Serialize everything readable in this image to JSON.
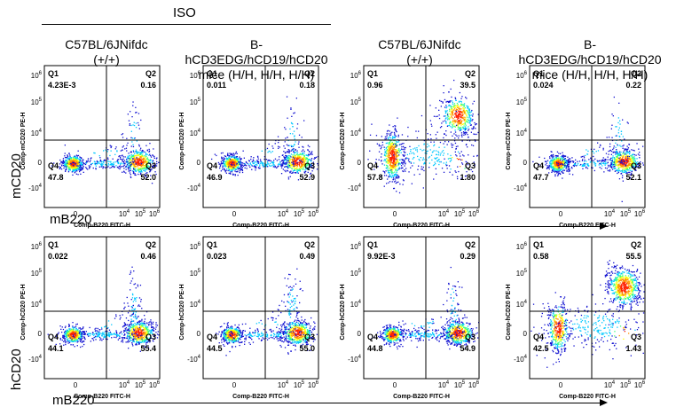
{
  "header": {
    "iso_label": "ISO",
    "columns": [
      {
        "line1": "C57BL/6JNifdc",
        "line2": "(+/+)"
      },
      {
        "line1": "B-hCD3EDG/hCD19/hCD20",
        "line2": "mice (H/H, H/H, H/H)"
      },
      {
        "line1": "C57BL/6JNifdc",
        "line2": "(+/+)"
      },
      {
        "line1": "B-hCD3EDG/hCD19/hCD20",
        "line2": "mice (H/H, H/H, H/H)"
      }
    ]
  },
  "rows": [
    {
      "y_marker": "mCD20",
      "x_marker": "mB220",
      "y_axis_title": "Comp-mCD20 PE-H",
      "x_axis_title": "Comp-B220 FITC-H"
    },
    {
      "y_marker": "hCD20",
      "x_marker": "mB220",
      "y_axis_title": "Comp-hCD20 PE-H",
      "x_axis_title": "Comp-B220 FITC-H"
    }
  ],
  "axis_ticks": {
    "x": [
      {
        "base": "0",
        "exp": ""
      },
      {
        "base": "10",
        "exp": "4"
      },
      {
        "base": "10",
        "exp": "5"
      },
      {
        "base": "10",
        "exp": "6"
      }
    ],
    "y": [
      {
        "base": "10",
        "exp": "6"
      },
      {
        "base": "10",
        "exp": "5"
      },
      {
        "base": "10",
        "exp": "4"
      },
      {
        "base": "0",
        "exp": ""
      },
      {
        "base": "-10",
        "exp": "4"
      }
    ]
  },
  "chart_data": [
    {
      "type": "scatter",
      "row": 0,
      "col": 0,
      "xlabel": "Comp-B220 FITC-H",
      "ylabel": "Comp-mCD20 PE-H",
      "x_scale": "biexponential",
      "y_scale": "biexponential",
      "quadrants": {
        "Q1": "4.23E-3",
        "Q2": "0.16",
        "Q3": "52.0",
        "Q4": "47.8"
      }
    },
    {
      "type": "scatter",
      "row": 0,
      "col": 1,
      "xlabel": "Comp-B220 FITC-H",
      "ylabel": "Comp-mCD20 PE-H",
      "x_scale": "biexponential",
      "y_scale": "biexponential",
      "quadrants": {
        "Q1": "0.011",
        "Q2": "0.18",
        "Q3": "52.9",
        "Q4": "46.9"
      }
    },
    {
      "type": "scatter",
      "row": 0,
      "col": 2,
      "xlabel": "Comp-B220 FITC-H",
      "ylabel": "Comp-mCD20 PE-H",
      "x_scale": "biexponential",
      "y_scale": "biexponential",
      "quadrants": {
        "Q1": "0.96",
        "Q2": "39.5",
        "Q3": "1.80",
        "Q4": "57.8"
      }
    },
    {
      "type": "scatter",
      "row": 0,
      "col": 3,
      "xlabel": "Comp-B220 FITC-H",
      "ylabel": "Comp-mCD20 PE-H",
      "x_scale": "biexponential",
      "y_scale": "biexponential",
      "quadrants": {
        "Q1": "0.024",
        "Q2": "0.22",
        "Q3": "52.1",
        "Q4": "47.7"
      }
    },
    {
      "type": "scatter",
      "row": 1,
      "col": 0,
      "xlabel": "Comp-B220 FITC-H",
      "ylabel": "Comp-hCD20 PE-H",
      "x_scale": "biexponential",
      "y_scale": "biexponential",
      "quadrants": {
        "Q1": "0.022",
        "Q2": "0.46",
        "Q3": "55.4",
        "Q4": "44.1"
      }
    },
    {
      "type": "scatter",
      "row": 1,
      "col": 1,
      "xlabel": "Comp-B220 FITC-H",
      "ylabel": "Comp-hCD20 PE-H",
      "x_scale": "biexponential",
      "y_scale": "biexponential",
      "quadrants": {
        "Q1": "0.023",
        "Q2": "0.49",
        "Q3": "55.0",
        "Q4": "44.5"
      }
    },
    {
      "type": "scatter",
      "row": 1,
      "col": 2,
      "xlabel": "Comp-B220 FITC-H",
      "ylabel": "Comp-hCD20 PE-H",
      "x_scale": "biexponential",
      "y_scale": "biexponential",
      "quadrants": {
        "Q1": "9.92E-3",
        "Q2": "0.29",
        "Q3": "54.9",
        "Q4": "44.8"
      }
    },
    {
      "type": "scatter",
      "row": 1,
      "col": 3,
      "xlabel": "Comp-B220 FITC-H",
      "ylabel": "Comp-hCD20 PE-H",
      "x_scale": "biexponential",
      "y_scale": "biexponential",
      "quadrants": {
        "Q1": "0.58",
        "Q2": "55.5",
        "Q3": "1.43",
        "Q4": "42.5"
      }
    }
  ],
  "colors": {
    "low_density": "#1010d0",
    "mid_density": "#00c8ff",
    "high_density": "#ffff00",
    "peak_density": "#ff2000"
  }
}
